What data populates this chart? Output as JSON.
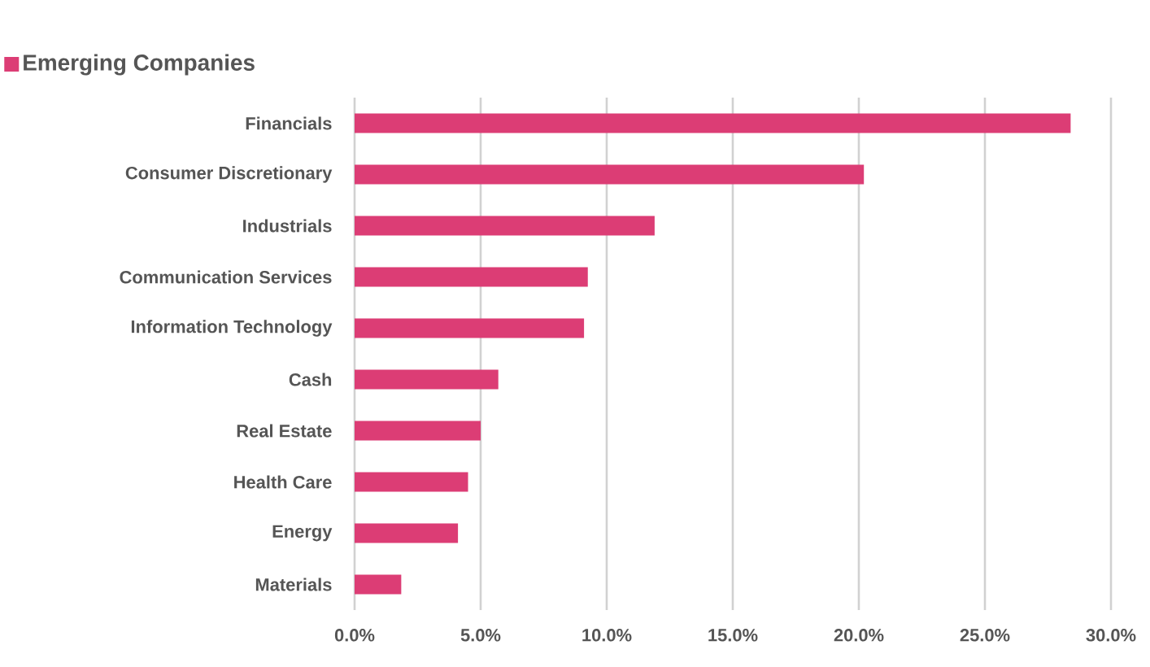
{
  "chart_data": {
    "type": "bar",
    "orientation": "horizontal",
    "categories": [
      "Financials",
      "Consumer Discretionary",
      "Industrials",
      "Communication Services",
      "Information Technology",
      "Cash",
      "Real Estate",
      "Health Care",
      "Energy",
      "Materials"
    ],
    "series": [
      {
        "name": "Emerging Companies",
        "color": "#dc3d75",
        "values": [
          28.4,
          20.2,
          11.9,
          9.25,
          9.1,
          5.7,
          5.0,
          4.5,
          4.1,
          1.85
        ]
      }
    ],
    "xlim": [
      0,
      30
    ],
    "xticks": [
      {
        "value": 0,
        "label": "0.0%"
      },
      {
        "value": 5,
        "label": "5.0%"
      },
      {
        "value": 10,
        "label": "10.0%"
      },
      {
        "value": 15,
        "label": "15.0%"
      },
      {
        "value": 20,
        "label": "20.0%"
      },
      {
        "value": 25,
        "label": "25.0%"
      },
      {
        "value": 30,
        "label": "30.0%"
      }
    ],
    "grid": "x",
    "legend": "top left"
  }
}
